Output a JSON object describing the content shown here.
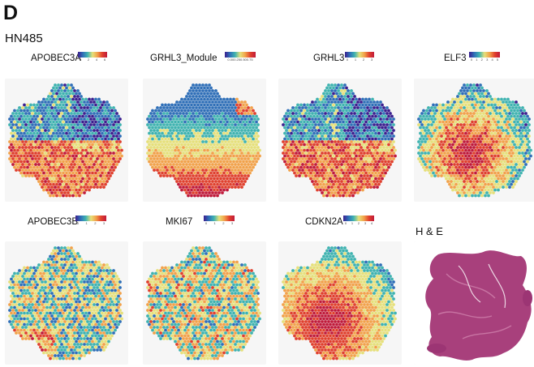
{
  "panel_letter": "D",
  "sample_label": "HN485",
  "colormap": [
    "#3b1f8f",
    "#2f6fb8",
    "#3fb3b0",
    "#e6e07a",
    "#f2a24a",
    "#e0402d",
    "#c01a3a"
  ],
  "panels": [
    {
      "id": "apobec3a",
      "gene": "APOBEC3A",
      "ticks": [
        "0",
        "2",
        "4",
        "6"
      ],
      "pattern": "dense-purple-top"
    },
    {
      "id": "grhl3-module",
      "gene": "GRHL3_Module",
      "ticks": [
        "0.000.250.500.75"
      ],
      "pattern": "blue-top-red-bottom"
    },
    {
      "id": "grhl3",
      "gene": "GRHL3",
      "ticks": [
        "0",
        "1",
        "2",
        "3"
      ],
      "pattern": "dense-purple-top"
    },
    {
      "id": "elf3",
      "gene": "ELF3",
      "ticks": [
        "0",
        "1",
        "2",
        "3",
        "4",
        "5"
      ],
      "pattern": "warm-center"
    },
    {
      "id": "apobec3b",
      "gene": "APOBEC3B",
      "ticks": [
        "0",
        "1",
        "2",
        "3"
      ],
      "pattern": "mixed-purple"
    },
    {
      "id": "mki67",
      "gene": "MKI67",
      "ticks": [
        "0",
        "1",
        "2",
        "3"
      ],
      "pattern": "speckled"
    },
    {
      "id": "cdkn2a",
      "gene": "CDKN2A",
      "ticks": [
        "0",
        "1",
        "2",
        "3",
        "4"
      ],
      "pattern": "orange-bottom"
    }
  ],
  "he_panel": {
    "label": "H & E",
    "tissue_color": "#a8407c",
    "background_color": "#ffffff"
  }
}
